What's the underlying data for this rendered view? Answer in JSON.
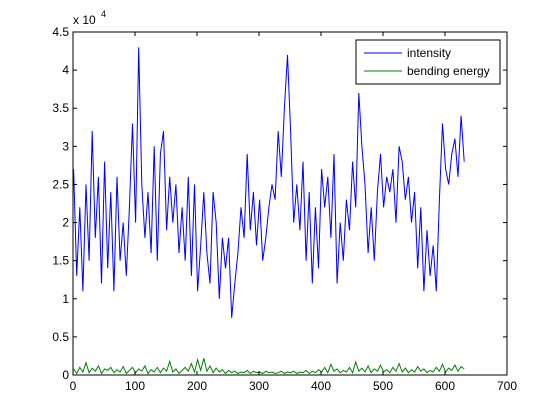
{
  "chart_data": {
    "type": "line",
    "title": "",
    "xlabel": "",
    "ylabel": "",
    "xlim": [
      0,
      700
    ],
    "ylim": [
      0,
      4.5
    ],
    "y_multiplier_label": "x 10",
    "y_multiplier_exponent": "4",
    "x_ticks": [
      0,
      100,
      200,
      300,
      400,
      500,
      600,
      700
    ],
    "y_ticks": [
      0,
      0.5,
      1,
      1.5,
      2,
      2.5,
      3,
      3.5,
      4,
      4.5
    ],
    "x_tick_labels": [
      "0",
      "100",
      "200",
      "300",
      "400",
      "500",
      "600",
      "700"
    ],
    "y_tick_labels": [
      "0",
      "0.5",
      "1",
      "1.5",
      "2",
      "2.5",
      "3",
      "3.5",
      "4",
      "4.5"
    ],
    "grid": false,
    "legend_position": "top-right",
    "series": [
      {
        "name": "intensity",
        "color": "#0000ff",
        "x_start": 1,
        "x_step": 5,
        "values": [
          2.7,
          1.3,
          2.2,
          1.1,
          2.5,
          1.5,
          3.2,
          1.8,
          2.6,
          1.2,
          2.8,
          1.4,
          2.4,
          1.1,
          2.6,
          1.5,
          2.0,
          1.3,
          2.2,
          3.3,
          2.0,
          4.3,
          2.5,
          1.8,
          2.4,
          1.6,
          3.0,
          1.5,
          2.9,
          3.2,
          1.9,
          2.6,
          2.0,
          2.5,
          1.6,
          2.2,
          1.5,
          2.6,
          1.3,
          2.5,
          1.1,
          1.7,
          2.4,
          1.6,
          1.2,
          2.4,
          2.0,
          1.0,
          1.8,
          1.4,
          1.8,
          0.75,
          1.2,
          1.6,
          2.2,
          1.8,
          2.9,
          1.9,
          2.4,
          1.7,
          2.3,
          1.5,
          1.8,
          2.2,
          2.5,
          2.3,
          3.2,
          2.6,
          3.5,
          4.2,
          3.2,
          2.0,
          2.5,
          1.9,
          2.8,
          1.5,
          2.4,
          1.2,
          2.2,
          1.4,
          2.7,
          2.2,
          2.6,
          1.8,
          2.9,
          1.2,
          2.0,
          1.5,
          2.3,
          1.9,
          2.8,
          2.2,
          3.7,
          3.0,
          2.5,
          1.6,
          2.2,
          1.5,
          2.4,
          2.9,
          2.2,
          2.6,
          2.4,
          2.7,
          2.0,
          3.0,
          2.8,
          2.3,
          2.6,
          2.0,
          2.4,
          1.4,
          2.2,
          1.1,
          1.9,
          1.3,
          1.7,
          1.1,
          2.3,
          3.3,
          2.7,
          2.5,
          2.9,
          3.1,
          2.6,
          3.4,
          2.8
        ]
      },
      {
        "name": "bending energy",
        "color": "#008000",
        "x_start": 1,
        "x_step": 5,
        "values": [
          0.08,
          0.02,
          0.1,
          0.04,
          0.16,
          0.03,
          0.09,
          0.05,
          0.12,
          0.02,
          0.08,
          0.06,
          0.1,
          0.03,
          0.07,
          0.04,
          0.11,
          0.02,
          0.06,
          0.1,
          0.03,
          0.08,
          0.05,
          0.12,
          0.02,
          0.07,
          0.04,
          0.1,
          0.03,
          0.09,
          0.05,
          0.18,
          0.04,
          0.08,
          0.02,
          0.06,
          0.1,
          0.05,
          0.15,
          0.04,
          0.2,
          0.06,
          0.22,
          0.05,
          0.12,
          0.03,
          0.09,
          0.04,
          0.07,
          0.02,
          0.06,
          0.03,
          0.05,
          0.02,
          0.04,
          0.03,
          0.06,
          0.02,
          0.05,
          0.03,
          0.04,
          0.02,
          0.05,
          0.03,
          0.04,
          0.02,
          0.03,
          0.05,
          0.02,
          0.04,
          0.03,
          0.05,
          0.02,
          0.04,
          0.03,
          0.06,
          0.02,
          0.05,
          0.03,
          0.07,
          0.04,
          0.1,
          0.03,
          0.14,
          0.05,
          0.08,
          0.03,
          0.06,
          0.04,
          0.1,
          0.03,
          0.17,
          0.05,
          0.09,
          0.04,
          0.12,
          0.03,
          0.08,
          0.05,
          0.13,
          0.04,
          0.07,
          0.03,
          0.1,
          0.05,
          0.15,
          0.04,
          0.09,
          0.03,
          0.07,
          0.04,
          0.11,
          0.05,
          0.08,
          0.03,
          0.06,
          0.04,
          0.1,
          0.05,
          0.14,
          0.04,
          0.09,
          0.06,
          0.13,
          0.05,
          0.11,
          0.08
        ]
      }
    ]
  }
}
